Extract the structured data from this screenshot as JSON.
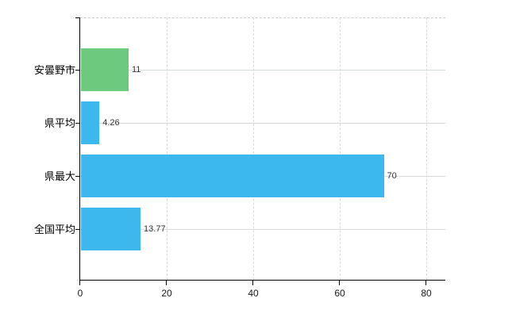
{
  "chart_data": {
    "type": "bar",
    "orientation": "horizontal",
    "title": "",
    "xlabel": "",
    "ylabel": "",
    "categories": [
      "安曇野市",
      "県平均",
      "県最大",
      "全国平均"
    ],
    "values": [
      11,
      4.26,
      70,
      13.77
    ],
    "value_labels": [
      "11",
      "4.26",
      "70",
      "13.77"
    ],
    "bar_colors": [
      "#6bca7d",
      "#3cb8ee",
      "#3cb8ee",
      "#3cb8ee"
    ],
    "xlim": [
      0,
      80
    ],
    "x_ticks": [
      0,
      20,
      40,
      60,
      80
    ],
    "x_tick_labels": [
      "0",
      "20",
      "40",
      "60",
      "80"
    ],
    "legend": "none",
    "grid": {
      "vertical": "dashed light gray at each x tick",
      "horizontal": "solid light gray through each category center",
      "top_border": "dashed light gray"
    },
    "colors": {
      "axis": "#000000",
      "vgrid": "#d9d9d9",
      "hgrid": "#d6dcd6",
      "value_label_text": "#333333",
      "category_label_text": "#000000",
      "tick_label_text": "#1a1a1a",
      "background": "#ffffff"
    }
  }
}
